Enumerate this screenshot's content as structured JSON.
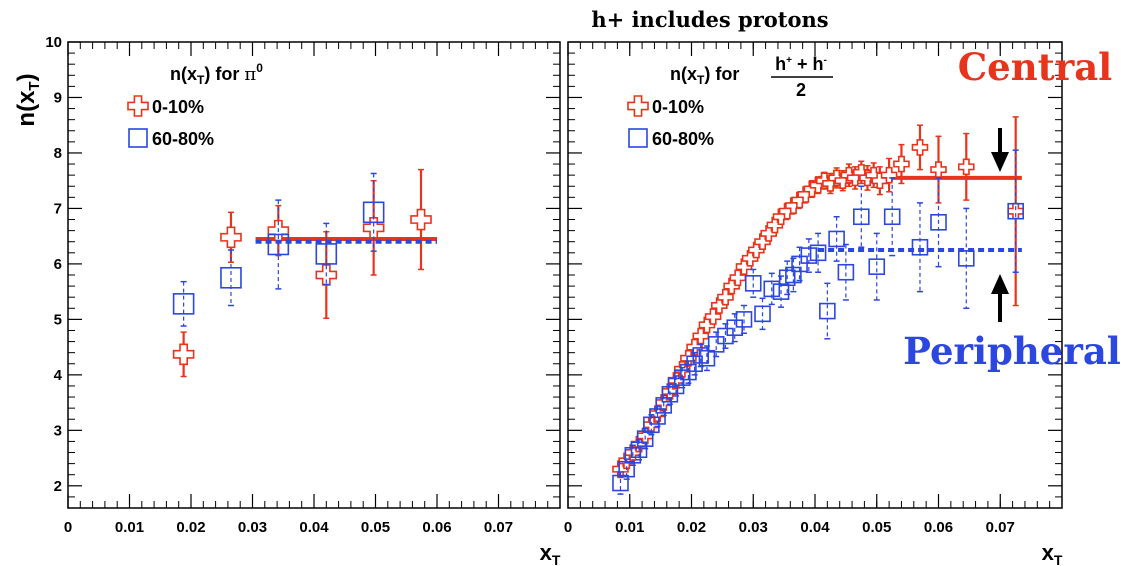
{
  "figure_title": "h+ includes protons",
  "annotations": {
    "central": "Central",
    "peripheral": "Peripheral"
  },
  "colors": {
    "central": "#e8341c",
    "peripheral": "#2c46e0"
  },
  "chart_data": [
    {
      "type": "scatter",
      "panel": "left",
      "ylabel": "n(x_T)",
      "xlabel": "x_T",
      "xlim": [
        0,
        0.08
      ],
      "ylim": [
        1.6,
        10
      ],
      "xticks": [
        "0",
        "0.01",
        "0.02",
        "0.03",
        "0.04",
        "0.05",
        "0.06",
        "0.07"
      ],
      "yticks": [
        "2",
        "3",
        "4",
        "5",
        "6",
        "7",
        "8",
        "9",
        "10"
      ],
      "legend_title": "n(x_T) for π^0",
      "legend_position": "top-left",
      "series": [
        {
          "name": "0-10%",
          "marker": "open-cross",
          "color": "#e8341c",
          "points": [
            {
              "x": 0.0188,
              "y": 4.37,
              "err": 0.4
            },
            {
              "x": 0.0265,
              "y": 6.48,
              "err": 0.45
            },
            {
              "x": 0.0342,
              "y": 6.6,
              "err": 0.45
            },
            {
              "x": 0.042,
              "y": 5.8,
              "err": 0.78
            },
            {
              "x": 0.0497,
              "y": 6.65,
              "err": 0.85
            },
            {
              "x": 0.0574,
              "y": 6.8,
              "err": 0.9
            }
          ],
          "fit": {
            "x0": 0.0305,
            "x1": 0.06,
            "y": 6.45
          }
        },
        {
          "name": "60-80%",
          "marker": "open-square",
          "color": "#2c46e0",
          "points": [
            {
              "x": 0.0188,
              "y": 5.28,
              "err": 0.4
            },
            {
              "x": 0.0265,
              "y": 5.75,
              "err": 0.5
            },
            {
              "x": 0.0342,
              "y": 6.35,
              "err": 0.8
            },
            {
              "x": 0.042,
              "y": 6.18,
              "err": 0.55
            },
            {
              "x": 0.0497,
              "y": 6.93,
              "err": 0.7
            }
          ],
          "fit": {
            "x0": 0.0305,
            "x1": 0.06,
            "y": 6.4
          }
        }
      ]
    },
    {
      "type": "scatter",
      "panel": "right",
      "xlabel": "x_T",
      "xlim": [
        0,
        0.08
      ],
      "ylim": [
        1.6,
        10
      ],
      "xticks": [
        "0",
        "0.01",
        "0.02",
        "0.03",
        "0.04",
        "0.05",
        "0.06",
        "0.07"
      ],
      "yticks": [
        "2",
        "3",
        "4",
        "5",
        "6",
        "7",
        "8",
        "9",
        "10"
      ],
      "legend_title": "n(x_T) for (h^+ + h^-)/2",
      "legend_position": "top-left",
      "series": [
        {
          "name": "0-10%",
          "marker": "open-cross",
          "color": "#e8341c",
          "points": [
            {
              "x": 0.0085,
              "y": 2.3,
              "err": 0.15
            },
            {
              "x": 0.0095,
              "y": 2.45,
              "err": 0.12
            },
            {
              "x": 0.0105,
              "y": 2.6,
              "err": 0.12
            },
            {
              "x": 0.0115,
              "y": 2.75,
              "err": 0.12
            },
            {
              "x": 0.0125,
              "y": 2.9,
              "err": 0.12
            },
            {
              "x": 0.0135,
              "y": 3.1,
              "err": 0.12
            },
            {
              "x": 0.0145,
              "y": 3.3,
              "err": 0.12
            },
            {
              "x": 0.0155,
              "y": 3.5,
              "err": 0.12
            },
            {
              "x": 0.0165,
              "y": 3.7,
              "err": 0.12
            },
            {
              "x": 0.0175,
              "y": 3.9,
              "err": 0.12
            },
            {
              "x": 0.0185,
              "y": 4.1,
              "err": 0.12
            },
            {
              "x": 0.0195,
              "y": 4.3,
              "err": 0.12
            },
            {
              "x": 0.0205,
              "y": 4.5,
              "err": 0.12
            },
            {
              "x": 0.0215,
              "y": 4.7,
              "err": 0.12
            },
            {
              "x": 0.0225,
              "y": 4.9,
              "err": 0.12
            },
            {
              "x": 0.0235,
              "y": 5.05,
              "err": 0.12
            },
            {
              "x": 0.0245,
              "y": 5.25,
              "err": 0.12
            },
            {
              "x": 0.0255,
              "y": 5.4,
              "err": 0.12
            },
            {
              "x": 0.0265,
              "y": 5.6,
              "err": 0.12
            },
            {
              "x": 0.0275,
              "y": 5.75,
              "err": 0.12
            },
            {
              "x": 0.0285,
              "y": 5.95,
              "err": 0.12
            },
            {
              "x": 0.0295,
              "y": 6.1,
              "err": 0.12
            },
            {
              "x": 0.0305,
              "y": 6.25,
              "err": 0.12
            },
            {
              "x": 0.0315,
              "y": 6.4,
              "err": 0.12
            },
            {
              "x": 0.0325,
              "y": 6.55,
              "err": 0.12
            },
            {
              "x": 0.0335,
              "y": 6.7,
              "err": 0.12
            },
            {
              "x": 0.0345,
              "y": 6.85,
              "err": 0.12
            },
            {
              "x": 0.0355,
              "y": 6.95,
              "err": 0.12
            },
            {
              "x": 0.0365,
              "y": 7.05,
              "err": 0.12
            },
            {
              "x": 0.0375,
              "y": 7.15,
              "err": 0.12
            },
            {
              "x": 0.0385,
              "y": 7.25,
              "err": 0.12
            },
            {
              "x": 0.0395,
              "y": 7.35,
              "err": 0.15
            },
            {
              "x": 0.0405,
              "y": 7.42,
              "err": 0.15
            },
            {
              "x": 0.0415,
              "y": 7.5,
              "err": 0.15
            },
            {
              "x": 0.0425,
              "y": 7.45,
              "err": 0.18
            },
            {
              "x": 0.0435,
              "y": 7.55,
              "err": 0.18
            },
            {
              "x": 0.0445,
              "y": 7.5,
              "err": 0.18
            },
            {
              "x": 0.0455,
              "y": 7.6,
              "err": 0.2
            },
            {
              "x": 0.0465,
              "y": 7.55,
              "err": 0.2
            },
            {
              "x": 0.0475,
              "y": 7.65,
              "err": 0.2
            },
            {
              "x": 0.0485,
              "y": 7.55,
              "err": 0.22
            },
            {
              "x": 0.0495,
              "y": 7.6,
              "err": 0.22
            },
            {
              "x": 0.0505,
              "y": 7.5,
              "err": 0.25
            },
            {
              "x": 0.052,
              "y": 7.6,
              "err": 0.3
            },
            {
              "x": 0.054,
              "y": 7.8,
              "err": 0.35
            },
            {
              "x": 0.057,
              "y": 8.1,
              "err": 0.4
            },
            {
              "x": 0.06,
              "y": 7.7,
              "err": 0.6
            },
            {
              "x": 0.0645,
              "y": 7.75,
              "err": 0.6
            },
            {
              "x": 0.0725,
              "y": 6.95,
              "err": 1.7
            }
          ],
          "fit": {
            "x0": 0.0405,
            "x1": 0.0735,
            "y": 7.55
          }
        },
        {
          "name": "60-80%",
          "marker": "open-square",
          "color": "#2c46e0",
          "points": [
            {
              "x": 0.0085,
              "y": 2.05,
              "err": 0.2
            },
            {
              "x": 0.0095,
              "y": 2.3,
              "err": 0.18
            },
            {
              "x": 0.0105,
              "y": 2.55,
              "err": 0.18
            },
            {
              "x": 0.0115,
              "y": 2.65,
              "err": 0.18
            },
            {
              "x": 0.0125,
              "y": 2.85,
              "err": 0.18
            },
            {
              "x": 0.0135,
              "y": 3.1,
              "err": 0.18
            },
            {
              "x": 0.0145,
              "y": 3.25,
              "err": 0.18
            },
            {
              "x": 0.0155,
              "y": 3.45,
              "err": 0.18
            },
            {
              "x": 0.0165,
              "y": 3.65,
              "err": 0.18
            },
            {
              "x": 0.0175,
              "y": 3.8,
              "err": 0.18
            },
            {
              "x": 0.0185,
              "y": 3.95,
              "err": 0.18
            },
            {
              "x": 0.0195,
              "y": 4.05,
              "err": 0.2
            },
            {
              "x": 0.0205,
              "y": 4.2,
              "err": 0.2
            },
            {
              "x": 0.0215,
              "y": 4.35,
              "err": 0.2
            },
            {
              "x": 0.0225,
              "y": 4.3,
              "err": 0.22
            },
            {
              "x": 0.024,
              "y": 4.55,
              "err": 0.22
            },
            {
              "x": 0.0255,
              "y": 4.7,
              "err": 0.22
            },
            {
              "x": 0.027,
              "y": 4.85,
              "err": 0.25
            },
            {
              "x": 0.0285,
              "y": 5.0,
              "err": 0.25
            },
            {
              "x": 0.03,
              "y": 5.65,
              "err": 0.25
            },
            {
              "x": 0.0315,
              "y": 5.1,
              "err": 0.28
            },
            {
              "x": 0.033,
              "y": 5.55,
              "err": 0.28
            },
            {
              "x": 0.0345,
              "y": 5.5,
              "err": 0.28
            },
            {
              "x": 0.0355,
              "y": 5.75,
              "err": 0.3
            },
            {
              "x": 0.0365,
              "y": 5.8,
              "err": 0.3
            },
            {
              "x": 0.0375,
              "y": 6.0,
              "err": 0.3
            },
            {
              "x": 0.039,
              "y": 6.15,
              "err": 0.3
            },
            {
              "x": 0.0405,
              "y": 6.2,
              "err": 0.35
            },
            {
              "x": 0.042,
              "y": 5.15,
              "err": 0.5
            },
            {
              "x": 0.0435,
              "y": 6.45,
              "err": 0.4
            },
            {
              "x": 0.045,
              "y": 5.85,
              "err": 0.5
            },
            {
              "x": 0.0475,
              "y": 6.85,
              "err": 0.55
            },
            {
              "x": 0.05,
              "y": 5.95,
              "err": 0.6
            },
            {
              "x": 0.0525,
              "y": 6.85,
              "err": 0.7
            },
            {
              "x": 0.057,
              "y": 6.3,
              "err": 0.8
            },
            {
              "x": 0.06,
              "y": 6.75,
              "err": 0.8
            },
            {
              "x": 0.0645,
              "y": 6.1,
              "err": 0.9
            },
            {
              "x": 0.0725,
              "y": 6.95,
              "err": 1.1
            }
          ],
          "fit": {
            "x0": 0.0405,
            "x1": 0.0735,
            "y": 6.25
          }
        }
      ]
    }
  ]
}
